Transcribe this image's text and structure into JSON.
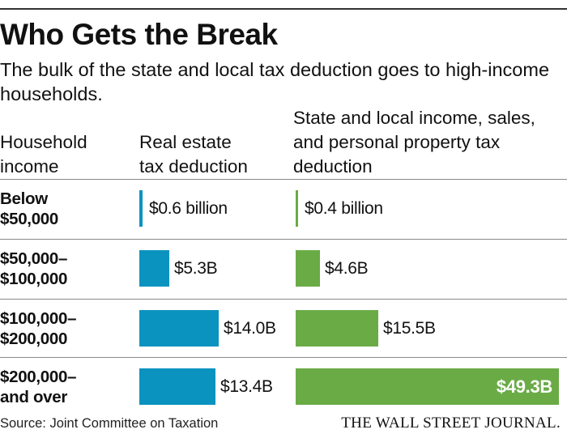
{
  "header": {
    "title": "Who Gets the Break",
    "subtitle": "The bulk of the state and local tax deduction goes to high-income households."
  },
  "columns": {
    "income": [
      "Household",
      "income"
    ],
    "real_estate": [
      "Real estate",
      "tax deduction"
    ],
    "state_local": [
      "State and local income, sales,",
      "and personal property tax",
      "deduction"
    ]
  },
  "colors": {
    "real_estate": "#0a93bf",
    "state_local": "#6aab46"
  },
  "chart_data": {
    "type": "bar",
    "title": "Who Gets the Break",
    "categories": [
      [
        "Below",
        "$50,000"
      ],
      [
        "$50,000–",
        "$100,000"
      ],
      [
        "$100,000–",
        "$200,000"
      ],
      [
        "$200,000–",
        "and over"
      ]
    ],
    "series": [
      {
        "name": "Real estate tax deduction",
        "unit": "billion USD",
        "values": [
          0.6,
          5.3,
          14.0,
          13.4
        ],
        "labels": [
          "$0.6 billion",
          "$5.3B",
          "$14.0B",
          "$13.4B"
        ]
      },
      {
        "name": "State and local income, sales, and personal property tax deduction",
        "unit": "billion USD",
        "values": [
          0.4,
          4.6,
          15.5,
          49.3
        ],
        "labels": [
          "$0.4 billion",
          "$4.6B",
          "$15.5B",
          "$49.3B"
        ]
      }
    ]
  },
  "footer": {
    "source": "Source: Joint Committee on Taxation",
    "brand": "THE WALL STREET JOURNAL."
  }
}
